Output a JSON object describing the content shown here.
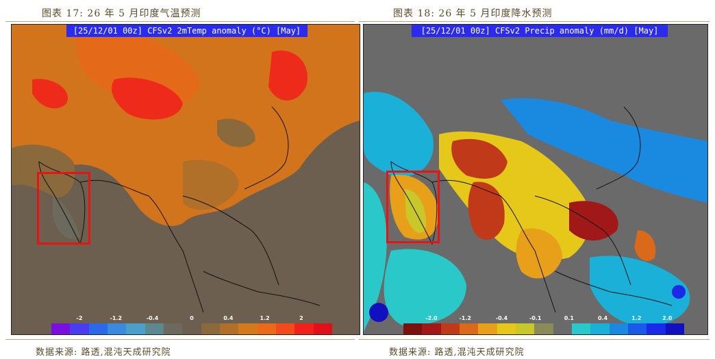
{
  "left": {
    "caption": "图表 17:  26  年  5  月印度气温预测",
    "map_title": "[25/12/01 00z] CFSv2 2mTemp anomaly (°C) [May]",
    "colorbar": {
      "tick_labels": [
        "-2",
        "-1.2",
        "-0.4",
        "0",
        "0.4",
        "1.2",
        "2"
      ],
      "colors": [
        "#7a10e0",
        "#4a3cf0",
        "#2c68ea",
        "#3a8ae0",
        "#4aa0c8",
        "#5a8a90",
        "#6c6a5c",
        "#6c5f4f",
        "#8a6a3c",
        "#b0702a",
        "#d27a1c",
        "#ea6a1a",
        "#f24a1a",
        "#f2201a",
        "#e0101a"
      ]
    },
    "source": "数据来源: 路透,混沌天成研究院"
  },
  "right": {
    "caption": "图表 18:  26  年  5  月印度降水预测",
    "map_title": "[25/12/01 00z] CFSv2 Precip anomaly (mm/d) [May]",
    "colorbar": {
      "tick_labels": [
        "-2.0",
        "-1.2",
        "-0.4",
        "-0.1",
        "0.1",
        "0.4",
        "1.2",
        "2.0"
      ],
      "colors": [
        "#7a1010",
        "#a01818",
        "#c03a1a",
        "#d86a1a",
        "#e8a01a",
        "#e6c81a",
        "#c8c82a",
        "#8a8a5a",
        "#6a6a6a",
        "#2ac8c8",
        "#1ab0d8",
        "#1a8ae0",
        "#1a5ae8",
        "#1a2ae8",
        "#1010c0"
      ]
    },
    "source": "数据来源: 路透,混沌天成研究院"
  }
}
